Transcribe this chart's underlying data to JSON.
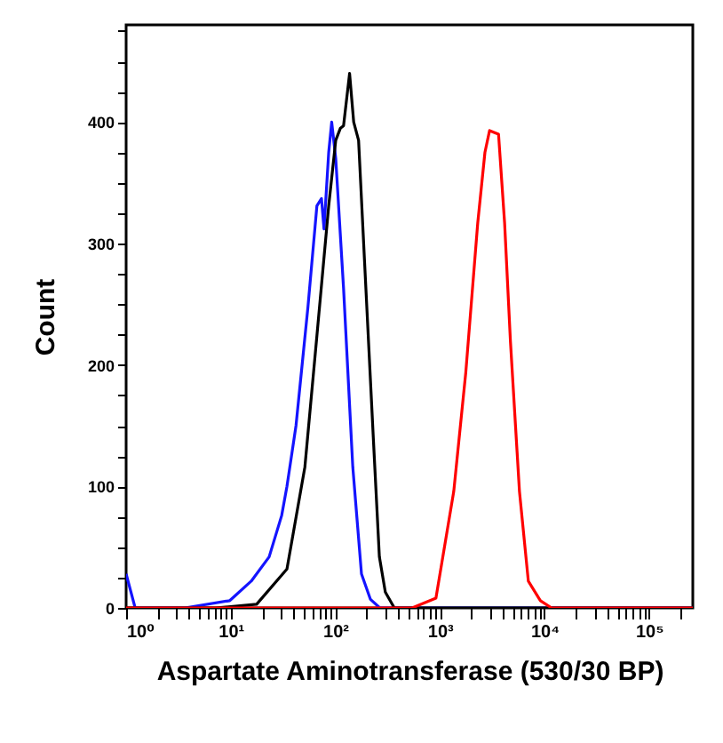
{
  "chart_data": {
    "type": "line",
    "xlabel": "Aspartate Aminotransferase (530/30 BP)",
    "ylabel": "Count",
    "log": "x",
    "xlim": [
      1,
      262144
    ],
    "ylim": [
      0,
      480
    ],
    "xticks": [
      {
        "value": 1,
        "label": "10⁰"
      },
      {
        "value": 2,
        "label": null
      },
      {
        "value": 3,
        "label": null
      },
      {
        "value": 4,
        "label": null
      },
      {
        "value": 5,
        "label": null
      },
      {
        "value": 6,
        "label": null
      },
      {
        "value": 7,
        "label": null
      },
      {
        "value": 8,
        "label": null
      },
      {
        "value": 9,
        "label": null
      },
      {
        "value": 10,
        "label": "10¹"
      },
      {
        "value": 20,
        "label": null
      },
      {
        "value": 30,
        "label": null
      },
      {
        "value": 40,
        "label": null
      },
      {
        "value": 50,
        "label": null
      },
      {
        "value": 60,
        "label": null
      },
      {
        "value": 70,
        "label": null
      },
      {
        "value": 80,
        "label": null
      },
      {
        "value": 90,
        "label": null
      },
      {
        "value": 100,
        "label": "10²"
      },
      {
        "value": 200,
        "label": null
      },
      {
        "value": 300,
        "label": null
      },
      {
        "value": 400,
        "label": null
      },
      {
        "value": 500,
        "label": null
      },
      {
        "value": 600,
        "label": null
      },
      {
        "value": 700,
        "label": null
      },
      {
        "value": 800,
        "label": null
      },
      {
        "value": 900,
        "label": null
      },
      {
        "value": 1000,
        "label": "10³"
      },
      {
        "value": 2000,
        "label": null
      },
      {
        "value": 3000,
        "label": null
      },
      {
        "value": 4000,
        "label": null
      },
      {
        "value": 5000,
        "label": null
      },
      {
        "value": 6000,
        "label": null
      },
      {
        "value": 7000,
        "label": null
      },
      {
        "value": 8000,
        "label": null
      },
      {
        "value": 9000,
        "label": null
      },
      {
        "value": 10000,
        "label": "10⁴"
      },
      {
        "value": 20000,
        "label": null
      },
      {
        "value": 30000,
        "label": null
      },
      {
        "value": 40000,
        "label": null
      },
      {
        "value": 50000,
        "label": null
      },
      {
        "value": 60000,
        "label": null
      },
      {
        "value": 70000,
        "label": null
      },
      {
        "value": 80000,
        "label": null
      },
      {
        "value": 90000,
        "label": null
      },
      {
        "value": 100000,
        "label": "10⁵"
      },
      {
        "value": 200000,
        "label": null
      }
    ],
    "yticks": [
      0,
      {
        "value": 25,
        "label": null
      },
      {
        "value": 50,
        "label": null
      },
      {
        "value": 75,
        "label": null
      },
      100,
      {
        "value": 125,
        "label": null
      },
      {
        "value": 150,
        "label": null
      },
      {
        "value": 175,
        "label": null
      },
      200,
      {
        "value": 225,
        "label": null
      },
      {
        "value": 250,
        "label": null
      },
      {
        "value": 275,
        "label": null
      },
      300,
      {
        "value": 325,
        "label": null
      },
      {
        "value": 350,
        "label": null
      },
      {
        "value": 375,
        "label": null
      },
      400,
      {
        "value": 425,
        "label": null
      },
      {
        "value": 450,
        "label": null
      },
      {
        "value": 475,
        "label": null
      }
    ],
    "series": [
      {
        "color": "#1414ff",
        "x": [
          1,
          1.22,
          3.66,
          9.8,
          15.7,
          23.3,
          30.7,
          34.5,
          42.1,
          54.8,
          66.7,
          73.8,
          78.0,
          86.5,
          92.4,
          101,
          120,
          147,
          178,
          217,
          267,
          262144
        ],
        "values": [
          28,
          0,
          0,
          6,
          22,
          42,
          76,
          100,
          150,
          248,
          331,
          337,
          312,
          375,
          400,
          370,
          263,
          116,
          28,
          7,
          0,
          0
        ]
      },
      {
        "color": "#000000",
        "x": [
          1,
          7.2,
          17.7,
          34.5,
          51.2,
          66.7,
          86.5,
          101,
          112,
          120,
          137,
          150,
          167,
          190,
          231,
          264,
          301,
          367,
          262144
        ],
        "values": [
          0,
          0,
          3,
          32,
          116,
          224,
          331,
          385,
          395,
          397,
          440,
          400,
          385,
          287,
          140,
          42,
          13,
          0,
          0
        ]
      },
      {
        "color": "#ff0000",
        "x": [
          1,
          543,
          917,
          1358,
          1770,
          2302,
          2697,
          2987,
          3639,
          4159,
          4732,
          5768,
          7015,
          9143,
          11700,
          262144
        ],
        "values": [
          0,
          0,
          8,
          96,
          194,
          317,
          375,
          393,
          390,
          317,
          219,
          96,
          22,
          6,
          0,
          0
        ]
      }
    ]
  }
}
